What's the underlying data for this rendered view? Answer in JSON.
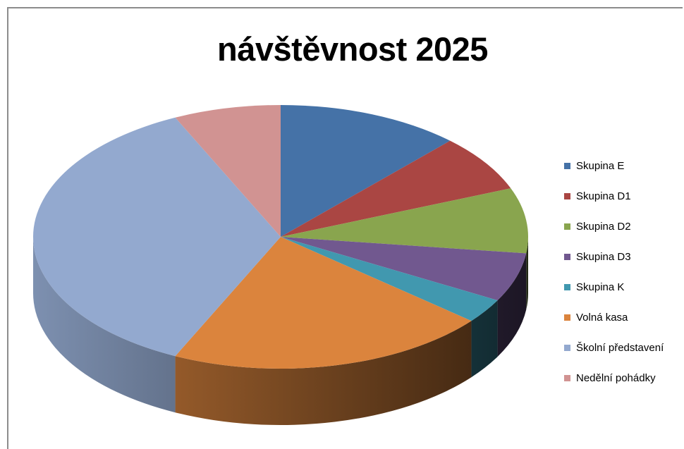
{
  "chart_data": {
    "type": "pie",
    "style": "3d",
    "title": "návštěvnost 2025",
    "legend_position": "right",
    "slices": [
      {
        "label": "Skupina E",
        "value": 12.0,
        "color": "#4572a7"
      },
      {
        "label": "Skupina D1",
        "value": 7.0,
        "color": "#aa4643"
      },
      {
        "label": "Skupina D2",
        "value": 8.0,
        "color": "#89a54e"
      },
      {
        "label": "Skupina D3",
        "value": 6.0,
        "color": "#71588f"
      },
      {
        "label": "Skupina K",
        "value": 3.0,
        "color": "#4198af"
      },
      {
        "label": "Volná kasa",
        "value": 21.0,
        "color": "#db843d"
      },
      {
        "label": "Školní představení",
        "value": 36.0,
        "color": "#93a9cf"
      },
      {
        "label": "Nedělní pohádky",
        "value": 7.0,
        "color": "#d19392"
      }
    ]
  }
}
